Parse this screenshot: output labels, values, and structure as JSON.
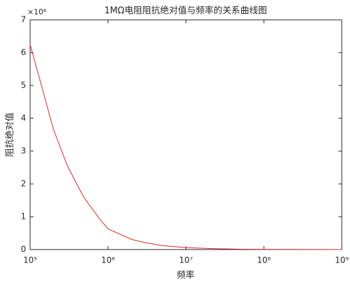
{
  "chart_data": {
    "type": "line",
    "title": "1MΩ电阻阻抗绝对值与频率的关系曲线图",
    "x_label": "频率",
    "y_label": "阻抗绝对值",
    "y_exponent_label": "×10⁶",
    "x_scale": "log",
    "x": [
      100000,
      200000,
      300000,
      400000,
      500000,
      600000,
      800000,
      1000000,
      2000000,
      3000000,
      5000000,
      10000000,
      20000000,
      50000000,
      100000000,
      1000000000
    ],
    "series": [
      {
        "name": "阻抗绝对值",
        "color": "#d62728",
        "values": [
          6.25,
          3.65,
          2.56,
          1.98,
          1.56,
          1.3,
          0.9,
          0.63,
          0.31,
          0.21,
          0.12,
          0.06,
          0.03,
          0.01,
          0.006,
          0.001
        ]
      }
    ],
    "xlim": [
      100000,
      1000000000
    ],
    "xticks": [
      {
        "value": 100000,
        "label": "10⁵"
      },
      {
        "value": 1000000,
        "label": "10⁶"
      },
      {
        "value": 10000000,
        "label": "10⁷"
      },
      {
        "value": 100000000,
        "label": "10⁸"
      },
      {
        "value": 1000000000,
        "label": "10⁹"
      }
    ],
    "ylim": [
      0,
      7
    ],
    "yticks": [
      0,
      1,
      2,
      3,
      4,
      5,
      6,
      7
    ],
    "grid": false
  }
}
